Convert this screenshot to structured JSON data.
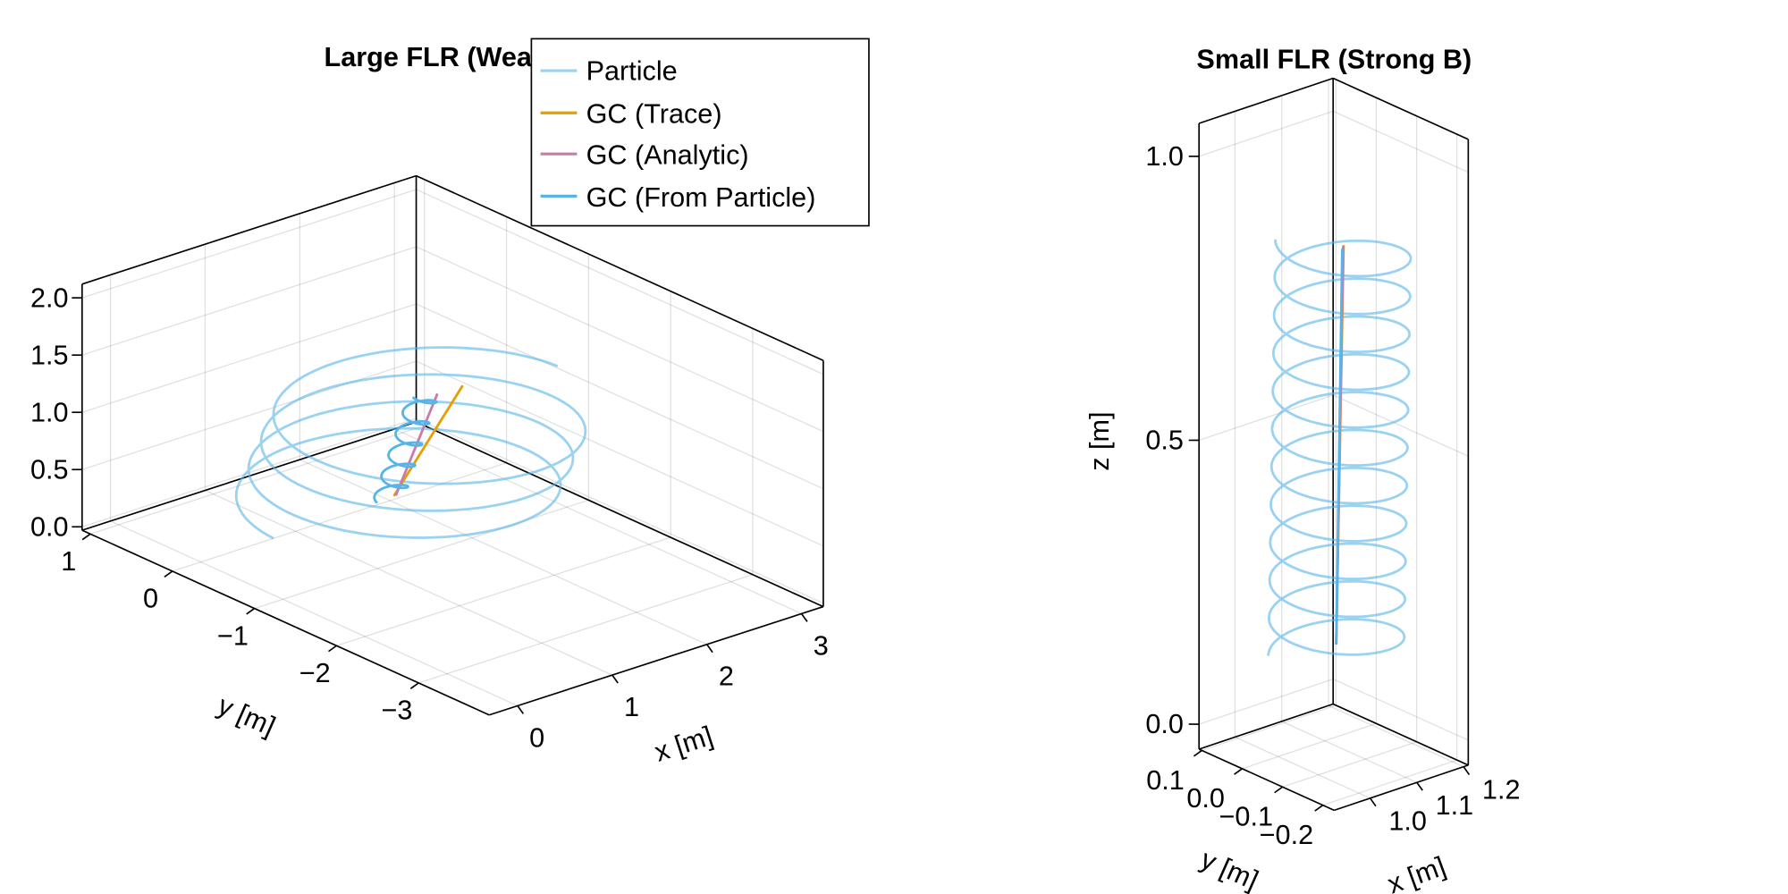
{
  "chart_data": [
    {
      "type": "line3d",
      "title": "Large FLR (Weak B)",
      "xlabel": "x [m]",
      "ylabel": "y [m]",
      "zlabel": "",
      "xlim": [
        -0.3,
        3.23
      ],
      "ylim": [
        -3.86,
        1.1
      ],
      "zlim": [
        -0.03,
        2.12
      ],
      "xticks": [
        0,
        1,
        2,
        3
      ],
      "xtick_labels": [
        "0",
        "1",
        "2",
        "3"
      ],
      "yticks": [
        1,
        0,
        -1,
        -2,
        -3
      ],
      "ytick_labels": [
        "1",
        "0",
        "−1",
        "−2",
        "−3"
      ],
      "zticks": [
        0,
        0.5,
        1,
        1.5,
        2
      ],
      "ztick_labels": [
        "0.0",
        "0.5",
        "1.0",
        "1.5",
        "2.0"
      ],
      "grid": true,
      "legend": {
        "placement": "top-right",
        "entries": [
          "Particle",
          "GC (Trace)",
          "GC (Analytic)",
          "GC (From Particle)"
        ]
      },
      "series": [
        {
          "name": "Particle",
          "color": "#56B4E9",
          "opacity": 0.6,
          "kind": "helix",
          "center_start": [
            1.65,
            -0.45
          ],
          "center_end": [
            1.91,
            -0.68
          ],
          "z_range": [
            0.22,
            1.05
          ],
          "radius": 1.27,
          "turns": 3.5,
          "phase_start_deg": 180,
          "direction": -1
        },
        {
          "name": "GC (Trace)",
          "color": "#E69F00",
          "opacity": 1,
          "kind": "polyline",
          "points": [
            [
              1.65,
              -0.45,
              0.25
            ],
            [
              2.1,
              -0.77,
              1.2
            ]
          ]
        },
        {
          "name": "GC (Analytic)",
          "color": "#CC79A7",
          "opacity": 1,
          "kind": "polyline",
          "points": [
            [
              1.67,
              -0.45,
              0.25
            ],
            [
              1.91,
              -0.68,
              1.15
            ]
          ]
        },
        {
          "name": "GC (From Particle)",
          "color": "#56B4E9",
          "opacity": 1,
          "kind": "helix",
          "center_start": [
            1.62,
            -0.42
          ],
          "center_end": [
            1.83,
            -0.61
          ],
          "z_range": [
            0.22,
            1.15
          ],
          "radius": 0.12,
          "turns": 5,
          "phase_start_deg": 180,
          "direction": -1
        }
      ]
    },
    {
      "type": "line3d",
      "title": "Small FLR (Strong B)",
      "xlabel": "x [m]",
      "ylabel": "y [m]",
      "zlabel": "z [m]",
      "xlim": [
        0.923,
        1.21
      ],
      "ylim": [
        -0.228,
        0.107
      ],
      "zlim": [
        -0.044,
        1.058
      ],
      "xticks": [
        1.0,
        1.1,
        1.2
      ],
      "xtick_labels": [
        "1.0",
        "1.1",
        "1.2"
      ],
      "yticks": [
        0.1,
        0.0,
        -0.1,
        -0.2
      ],
      "ytick_labels": [
        "0.1",
        "0.0",
        "−0.1",
        "−0.2"
      ],
      "zticks": [
        0,
        0.5,
        1.0
      ],
      "ztick_labels": [
        "0.0",
        "0.5",
        "1.0"
      ],
      "grid": true,
      "series": [
        {
          "name": "Particle",
          "color": "#56B4E9",
          "opacity": 0.6,
          "kind": "helix",
          "center_start": [
            1.081,
            -0.05
          ],
          "center_end": [
            1.096,
            -0.05
          ],
          "z_range": [
            0.127,
            0.856
          ],
          "radius": 0.11,
          "turns": 11,
          "phase_start_deg": 139,
          "direction": -1
        },
        {
          "name": "GC (Trace)",
          "color": "#E69F00",
          "opacity": 1,
          "kind": "polyline",
          "points": [
            [
              1.081,
              -0.05,
              0.147
            ],
            [
              1.097,
              -0.05,
              0.846
            ]
          ]
        },
        {
          "name": "GC (Analytic)",
          "color": "#CC79A7",
          "opacity": 1,
          "kind": "polyline",
          "points": [
            [
              1.081,
              -0.05,
              0.147
            ],
            [
              1.096,
              -0.05,
              0.844
            ]
          ]
        },
        {
          "name": "GC (From Particle)",
          "color": "#56B4E9",
          "opacity": 1,
          "kind": "polyline",
          "points": [
            [
              1.081,
              -0.05,
              0.147
            ],
            [
              1.094,
              -0.05,
              0.84
            ]
          ]
        }
      ]
    }
  ]
}
